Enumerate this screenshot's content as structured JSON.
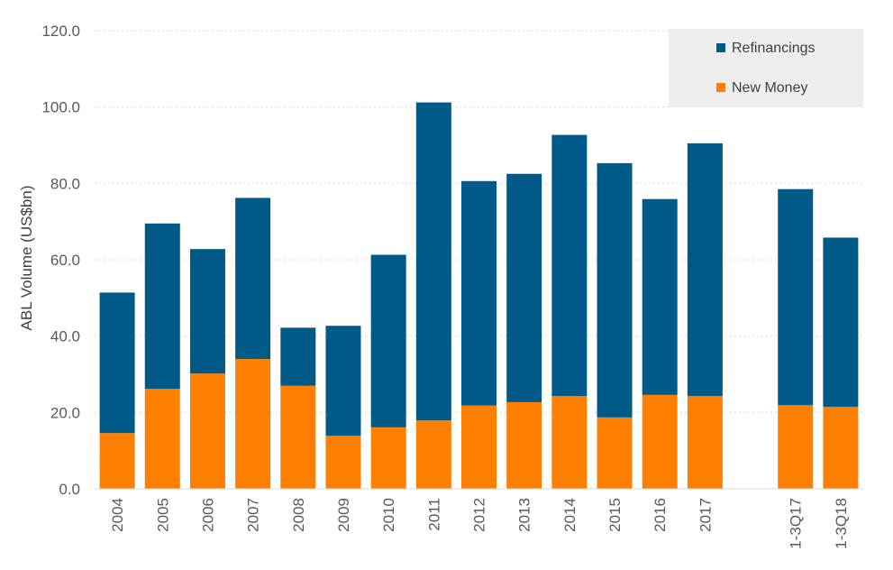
{
  "chart_data": {
    "type": "bar",
    "stacked": true,
    "title": "",
    "xlabel": "",
    "ylabel": "ABL Volume (US$bn)",
    "ylim": [
      0,
      120
    ],
    "yticks": [
      "0.0",
      "20.0",
      "40.0",
      "60.0",
      "80.0",
      "100.0",
      "120.0"
    ],
    "grid": true,
    "legend_position": "top-right",
    "categories": [
      "2004",
      "2005",
      "2006",
      "2007",
      "2008",
      "2009",
      "2010",
      "2011",
      "2012",
      "2013",
      "2014",
      "2015",
      "2016",
      "2017",
      "",
      "1-3Q17",
      "1-3Q18"
    ],
    "series": [
      {
        "name": "New Money",
        "color": "#ff7f00",
        "values": [
          14.6,
          26.2,
          30.2,
          34.0,
          27.0,
          13.9,
          16.1,
          17.9,
          21.8,
          22.7,
          24.3,
          18.7,
          24.6,
          24.3,
          null,
          21.9,
          21.5
        ]
      },
      {
        "name": "Refinancings",
        "color": "#005a87",
        "values": [
          36.8,
          43.3,
          32.6,
          42.2,
          15.2,
          28.8,
          45.2,
          83.3,
          58.8,
          59.8,
          68.4,
          66.6,
          51.3,
          66.2,
          null,
          56.6,
          44.3
        ]
      }
    ]
  }
}
